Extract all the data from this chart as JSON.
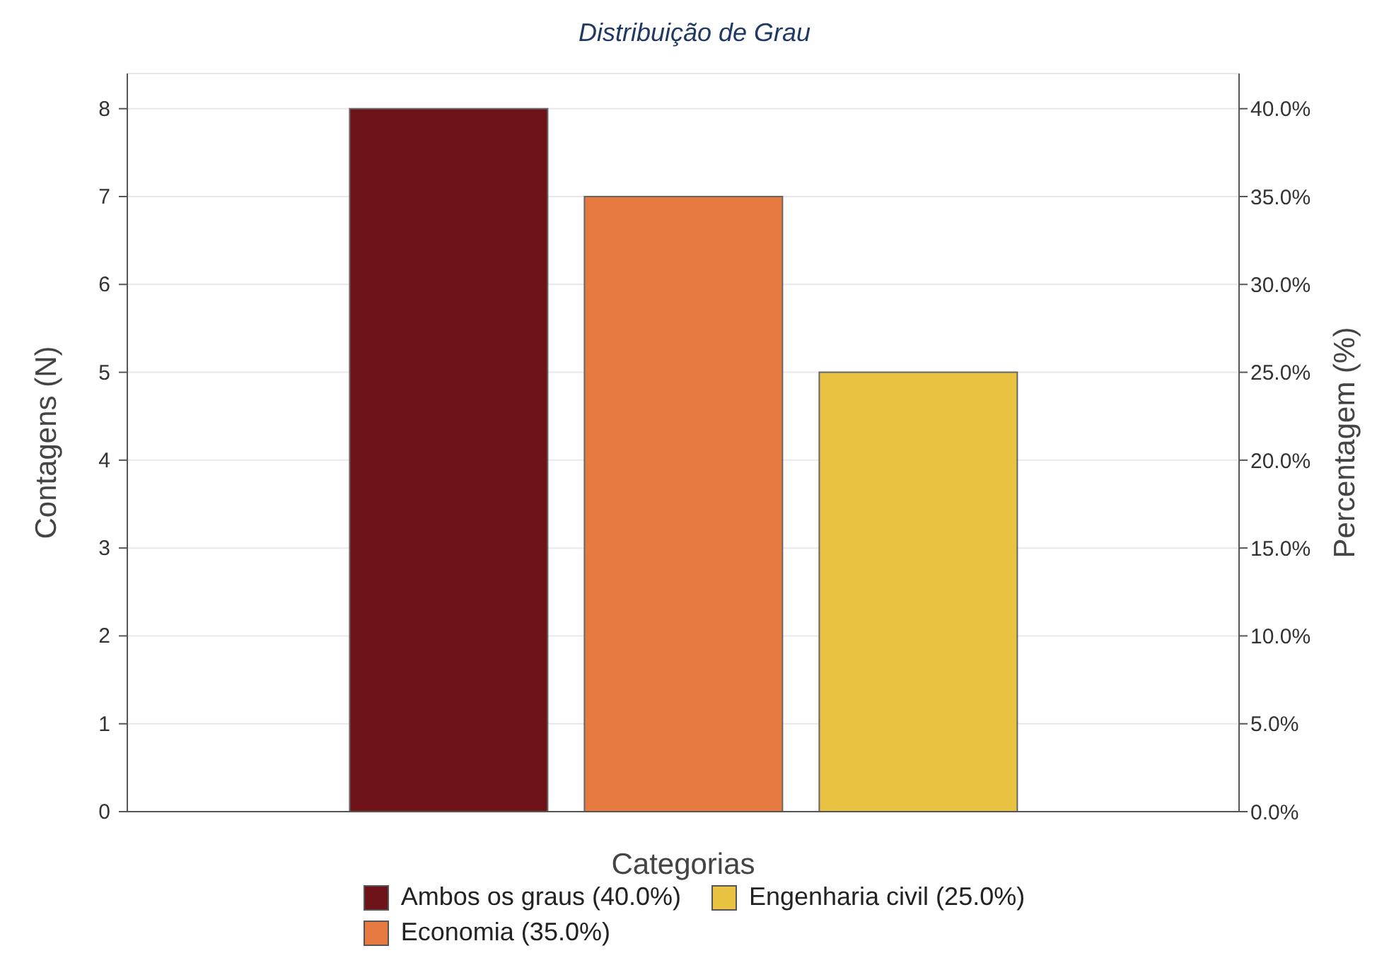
{
  "chart_data": {
    "type": "bar",
    "title": "Distribuição de Grau",
    "xlabel": "Categorias",
    "ylabel": "Contagens (N)",
    "y2label": "Percentagem (%)",
    "categories": [
      null
    ],
    "series": [
      {
        "name": "Ambos os graus (40.0%)",
        "color": "#6e1418",
        "values": [
          8
        ]
      },
      {
        "name": "Economia (35.0%)",
        "color": "#e67a40",
        "values": [
          7
        ]
      },
      {
        "name": "Engenharia civil (25.0%)",
        "color": "#e8c240",
        "values": [
          5
        ]
      }
    ],
    "ylim": [
      0,
      8.4
    ],
    "yticks": [
      0,
      1,
      2,
      3,
      4,
      5,
      6,
      7,
      8
    ],
    "y2lim": [
      0,
      42
    ],
    "y2ticks": [
      {
        "value": 0,
        "label": "0.0%"
      },
      {
        "value": 5,
        "label": "5.0%"
      },
      {
        "value": 10,
        "label": "10.0%"
      },
      {
        "value": 15,
        "label": "15.0%"
      },
      {
        "value": 20,
        "label": "20.0%"
      },
      {
        "value": 25,
        "label": "25.0%"
      },
      {
        "value": 30,
        "label": "30.0%"
      },
      {
        "value": 35,
        "label": "35.0%"
      },
      {
        "value": 40,
        "label": "40.0%"
      }
    ],
    "grid": "y",
    "legend": "bottom"
  }
}
